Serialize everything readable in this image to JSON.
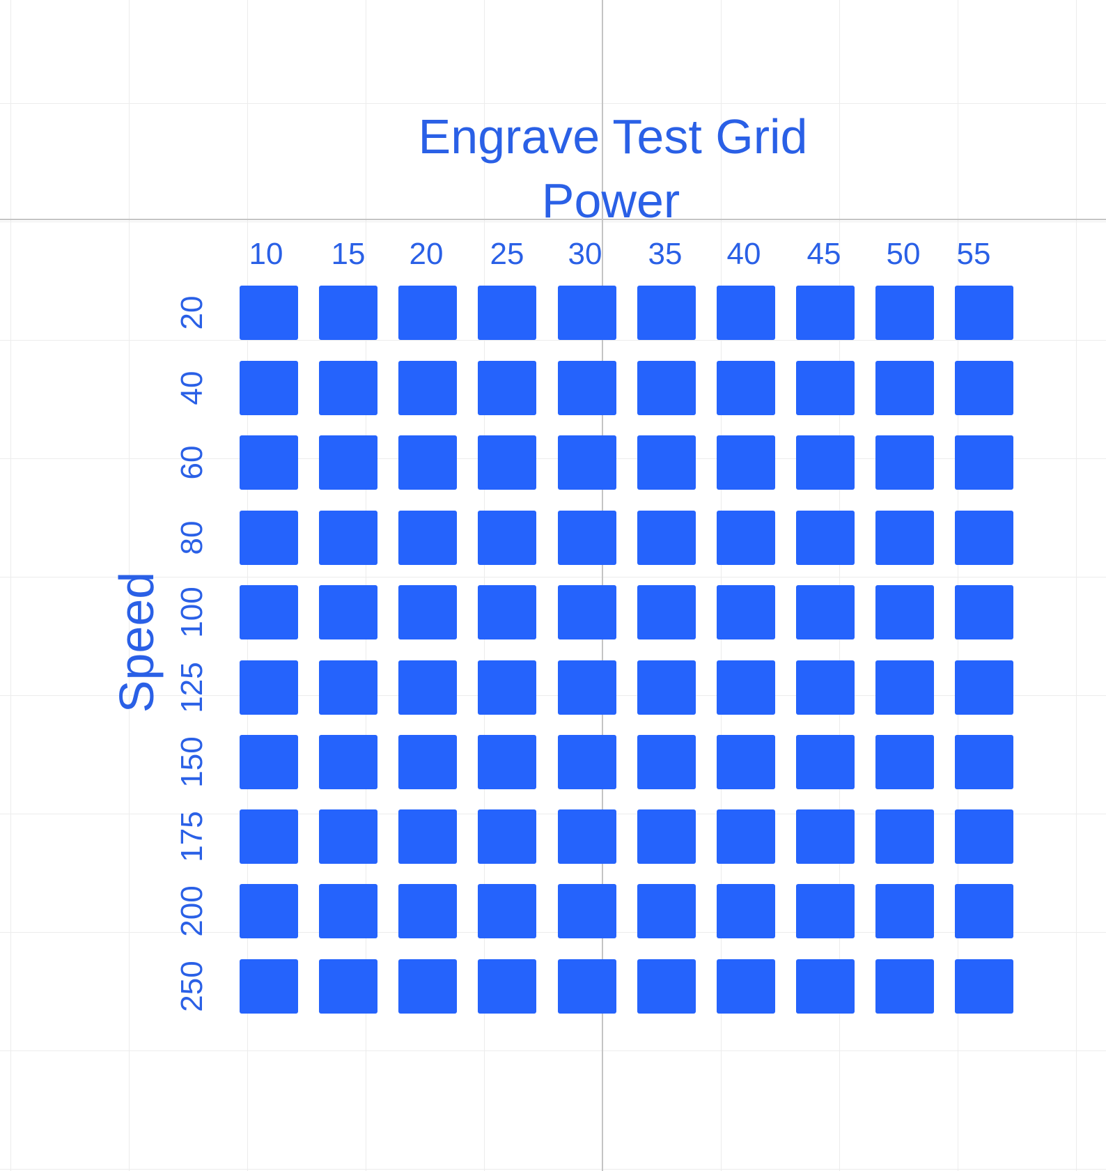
{
  "title": "Engrave Test Grid",
  "column_axis_label": "Power",
  "row_axis_label": "Speed",
  "power_values": [
    "10",
    "15",
    "20",
    "25",
    "30",
    "35",
    "40",
    "45",
    "50",
    "55"
  ],
  "speed_values": [
    "20",
    "40",
    "60",
    "80",
    "100",
    "125",
    "150",
    "175",
    "200",
    "250"
  ],
  "colors": {
    "text": "#2a60e6",
    "cell_fill": "#2563fc",
    "background": "#ffffff",
    "grid_lines": "#ececec",
    "axis_lines": "#c4c4c4"
  }
}
